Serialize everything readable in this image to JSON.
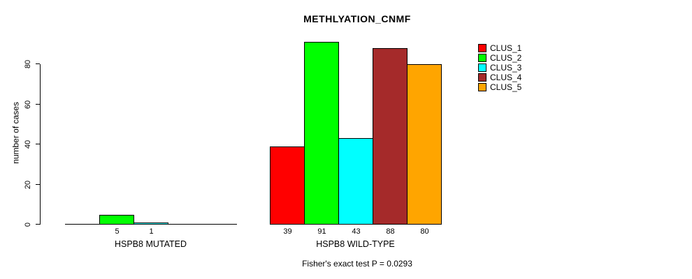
{
  "title": "METHLYATION_CNMF",
  "y_axis": {
    "label": "number of cases",
    "tick_labels": [
      "0",
      "20",
      "40",
      "60",
      "80"
    ]
  },
  "annotation": "Fisher's exact test P = 0.0293",
  "legend": {
    "items": [
      {
        "label": "CLUS_1",
        "color": "#ff0000"
      },
      {
        "label": "CLUS_2",
        "color": "#00ff00"
      },
      {
        "label": "CLUS_3",
        "color": "#00ffff"
      },
      {
        "label": "CLUS_4",
        "color": "#a52a2a"
      },
      {
        "label": "CLUS_5",
        "color": "#ffa500"
      }
    ]
  },
  "chart_data": {
    "type": "bar",
    "title": "METHLYATION_CNMF",
    "xlabel": "",
    "ylabel": "number of cases",
    "ylim": [
      0,
      80
    ],
    "yticks": [
      0,
      20,
      40,
      60,
      80
    ],
    "grid": false,
    "legend_position": "top-right",
    "series_names": [
      "CLUS_1",
      "CLUS_2",
      "CLUS_3",
      "CLUS_4",
      "CLUS_5"
    ],
    "series_colors": [
      "#ff0000",
      "#00ff00",
      "#00ffff",
      "#a52a2a",
      "#ffa500"
    ],
    "groups": [
      {
        "label": "HSPB8 MUTATED",
        "values": [
          0,
          5,
          1,
          0,
          0
        ],
        "bar_labels": [
          "",
          "5",
          "1",
          "",
          ""
        ]
      },
      {
        "label": "HSPB8 WILD-TYPE",
        "values": [
          39,
          91,
          43,
          88,
          80
        ],
        "bar_labels": [
          "39",
          "91",
          "43",
          "88",
          "80"
        ]
      }
    ],
    "annotation": "Fisher's exact test P = 0.0293"
  }
}
